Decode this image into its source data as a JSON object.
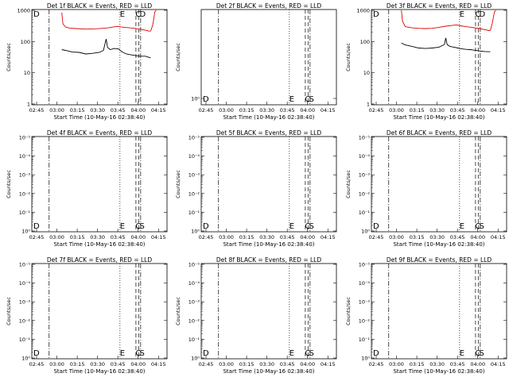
{
  "figure": {
    "xlabel": "Start Time (10-May-16 02:38:40)",
    "ylabel": "Counts/sec",
    "xticks": [
      "02:45",
      "03:00",
      "03:15",
      "03:30",
      "03:45",
      "04:00",
      "04:15"
    ],
    "colors": {
      "events": "#000000",
      "lld": "#e00000",
      "axes": "#000000",
      "background": "#ffffff"
    }
  },
  "chart_data": [
    {
      "type": "line",
      "title": "Det 1f BLACK = Events, RED = LLD",
      "scale": "log",
      "ylim": [
        1,
        1000
      ],
      "yticks": [
        "1",
        "10",
        "100",
        "1000"
      ],
      "xlim_min": [
        0,
        100
      ],
      "series": [
        {
          "name": "LLD",
          "color": "#e00000",
          "x": [
            22.2,
            23,
            25,
            28,
            33,
            40,
            47,
            55,
            60,
            63,
            66,
            70,
            75,
            80,
            84,
            87,
            88,
            89.5,
            91,
            92
          ],
          "y": [
            850,
            370,
            290,
            270,
            260,
            250,
            255,
            270,
            290,
            305,
            295,
            280,
            270,
            250,
            230,
            215,
            220,
            350,
            900,
            1000
          ]
        },
        {
          "name": "Events",
          "color": "#000000",
          "x": [
            22.2,
            25,
            30,
            35,
            40,
            45,
            50,
            53,
            54,
            55,
            56,
            58,
            61,
            64,
            67,
            70,
            73,
            76,
            80,
            84,
            87.9
          ],
          "y": [
            55,
            52,
            46,
            45,
            40,
            42,
            45,
            52,
            80,
            120,
            65,
            55,
            60,
            58,
            46,
            40,
            38,
            36,
            34,
            34,
            30
          ]
        }
      ],
      "markers": {
        "letters": [
          "D",
          "E",
          "C",
          "D"
        ]
      }
    },
    {
      "type": "line",
      "title": "Det 2f BLACK = Events, RED = LLD",
      "scale": "log",
      "ylim": [
        1,
        1000
      ],
      "yticks": [
        "10⁰"
      ],
      "series": [],
      "markers": {
        "letters": [
          "D",
          "E",
          "C",
          "S"
        ]
      }
    },
    {
      "type": "line",
      "title": "Det 3f BLACK = Events, RED = LLD",
      "scale": "log",
      "ylim": [
        1,
        1000
      ],
      "yticks": [
        "1",
        "10",
        "100",
        "1000"
      ],
      "series": [
        {
          "name": "LLD",
          "color": "#e00000",
          "x": [
            22.2,
            23,
            25,
            30,
            35,
            40,
            45,
            50,
            55,
            60,
            63,
            66,
            70,
            75,
            80,
            84,
            87,
            88,
            89.5,
            91,
            92
          ],
          "y": [
            1000,
            450,
            300,
            275,
            265,
            260,
            265,
            285,
            310,
            330,
            340,
            320,
            300,
            280,
            260,
            240,
            225,
            230,
            400,
            900,
            1000
          ]
        },
        {
          "name": "Events",
          "color": "#000000",
          "x": [
            22.2,
            25,
            30,
            35,
            40,
            45,
            50,
            54,
            55,
            56,
            58,
            61,
            64,
            67,
            70,
            73,
            76,
            80,
            84,
            87.9
          ],
          "y": [
            90,
            78,
            70,
            62,
            60,
            62,
            66,
            80,
            130,
            80,
            70,
            66,
            62,
            58,
            56,
            55,
            53,
            50,
            48,
            47
          ]
        }
      ],
      "markers": {
        "letters": [
          "D",
          "E",
          "C",
          "D"
        ]
      }
    },
    {
      "type": "line",
      "title": "Det 4f BLACK = Events, RED = LLD",
      "scale": "log",
      "yticks": [
        "10⁰",
        "10⁻¹",
        "10⁻²",
        "10⁻³",
        "10⁻⁴",
        "10⁻⁵"
      ],
      "series": [],
      "markers": {
        "letters": [
          "D",
          "E",
          "C",
          "S"
        ]
      }
    },
    {
      "type": "line",
      "title": "Det 5f BLACK = Events, RED = LLD",
      "scale": "log",
      "yticks": [
        "10⁰",
        "10⁻¹",
        "10⁻²",
        "10⁻³",
        "10⁻⁴",
        "10⁻⁵"
      ],
      "series": [],
      "markers": {
        "letters": [
          "D",
          "E",
          "C",
          "S"
        ]
      }
    },
    {
      "type": "line",
      "title": "Det 6f BLACK = Events, RED = LLD",
      "scale": "log",
      "yticks": [
        "10⁰",
        "10⁻¹",
        "10⁻²",
        "10⁻³",
        "10⁻⁴",
        "10⁻⁵"
      ],
      "series": [],
      "markers": {
        "letters": [
          "D",
          "E",
          "C",
          "S"
        ]
      }
    },
    {
      "type": "line",
      "title": "Det 7f BLACK = Events, RED = LLD",
      "scale": "log",
      "yticks": [
        "10⁰",
        "10⁻¹",
        "10⁻²",
        "10⁻³",
        "10⁻⁴",
        "10⁻⁵"
      ],
      "series": [],
      "markers": {
        "letters": [
          "D",
          "E",
          "C",
          "S"
        ]
      }
    },
    {
      "type": "line",
      "title": "Det 8f BLACK = Events, RED = LLD",
      "scale": "log",
      "yticks": [
        "10⁰",
        "10⁻¹",
        "10⁻²",
        "10⁻³",
        "10⁻⁴",
        "10⁻⁵"
      ],
      "series": [],
      "markers": {
        "letters": [
          "D",
          "E",
          "C",
          "S"
        ]
      }
    },
    {
      "type": "line",
      "title": "Det 9f BLACK = Events, RED = LLD",
      "scale": "log",
      "yticks": [
        "10⁰",
        "10⁻¹",
        "10⁻²",
        "10⁻³",
        "10⁻⁴",
        "10⁻⁵"
      ],
      "series": [],
      "markers": {
        "letters": [
          "D",
          "E",
          "C",
          "S"
        ]
      }
    }
  ]
}
